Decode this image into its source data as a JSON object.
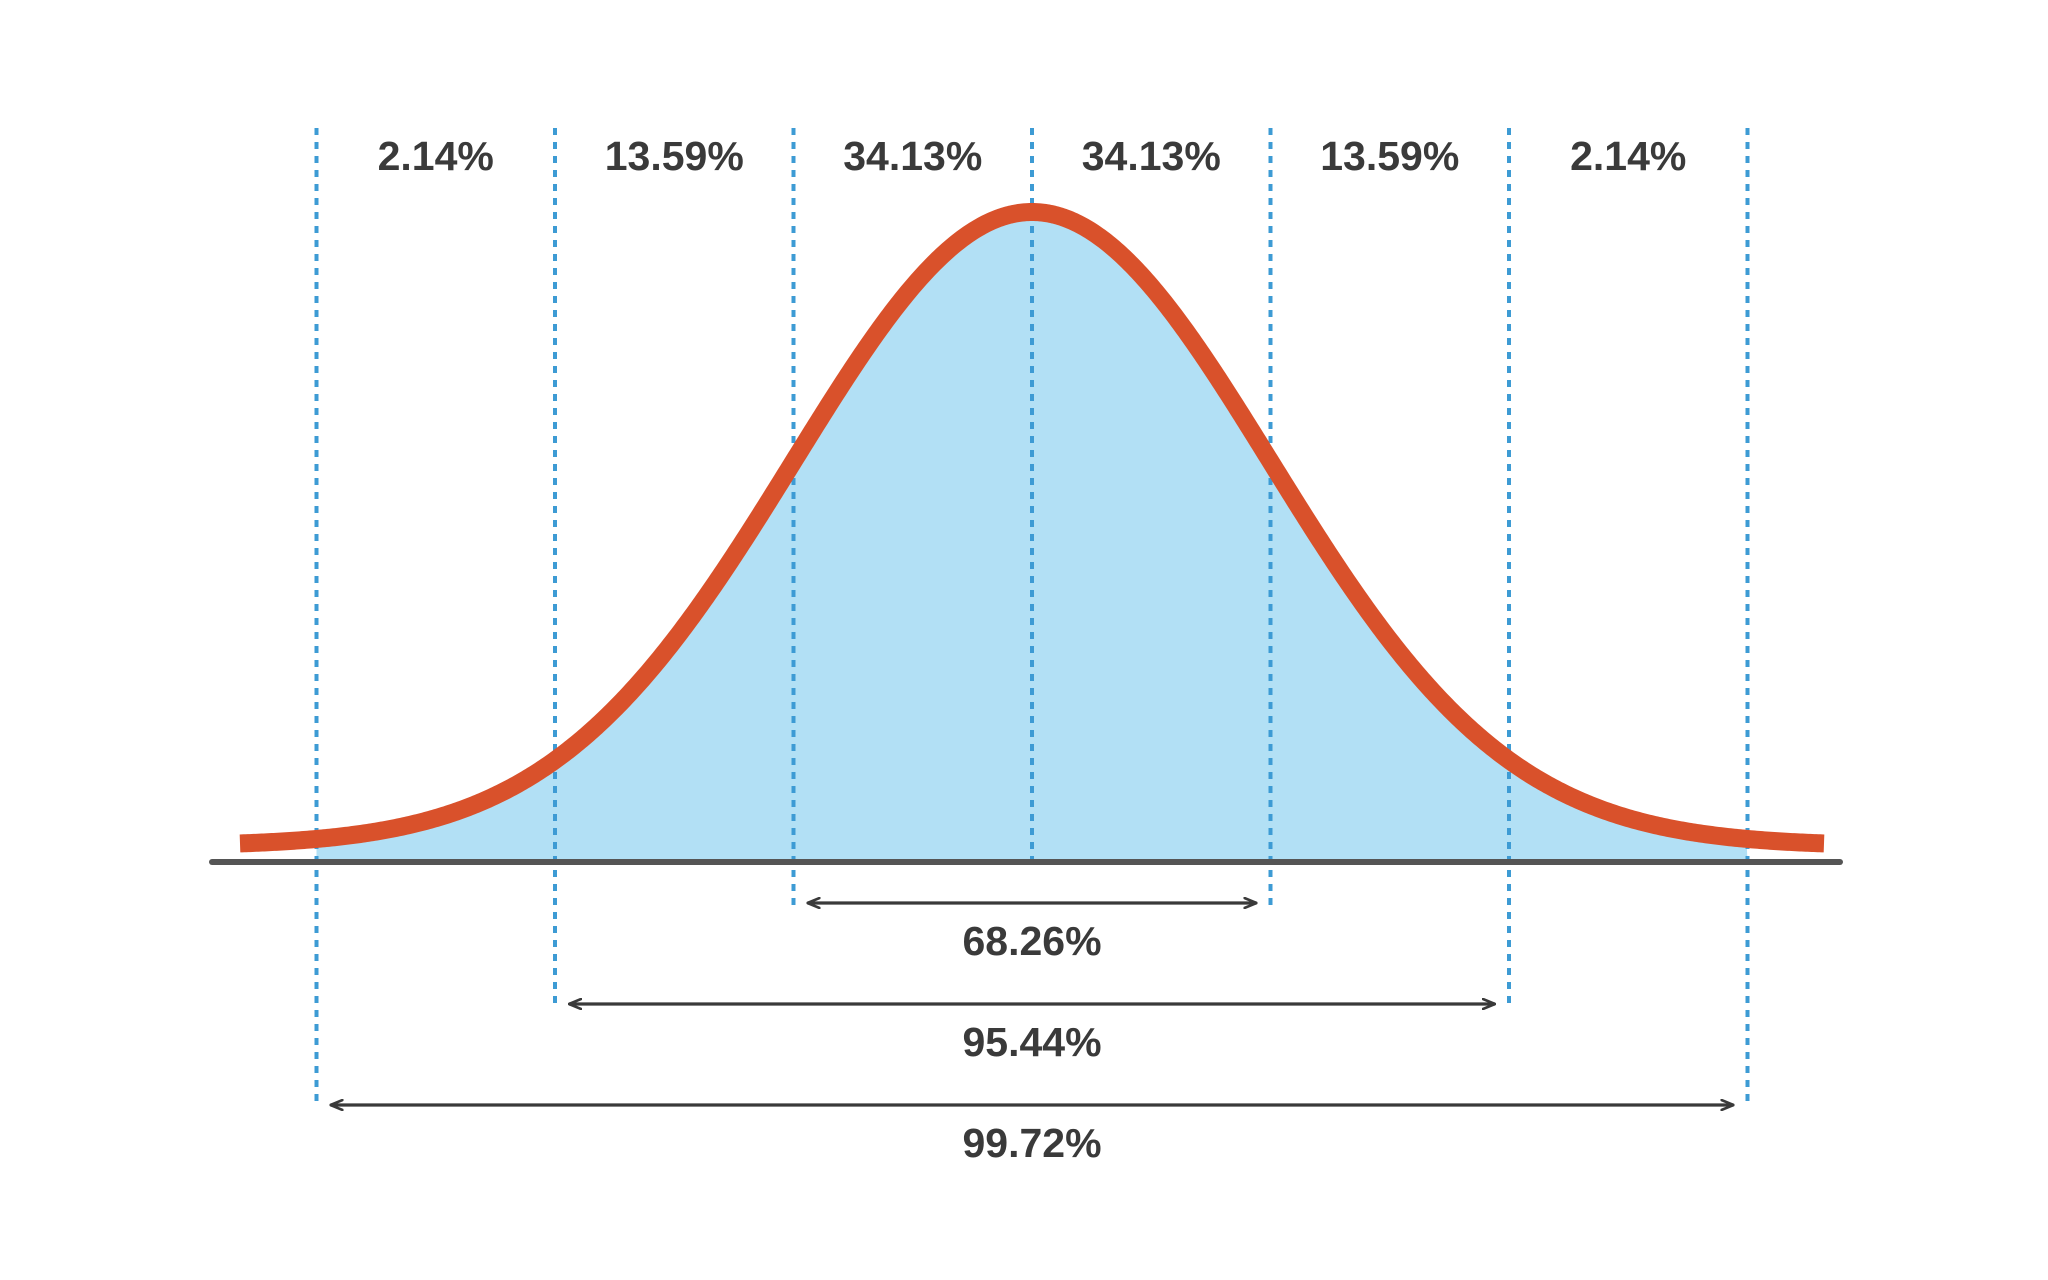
{
  "chart_data": {
    "type": "area",
    "title": "",
    "xlabel": "",
    "ylabel": "",
    "distribution": "normal",
    "mean": 0,
    "std": 1,
    "xlim": [
      -3.3,
      3.3
    ],
    "boundaries": [
      -3,
      -2,
      -1,
      0,
      1,
      2,
      3
    ],
    "segments": [
      {
        "from": -3,
        "to": -2,
        "label": "2.14%"
      },
      {
        "from": -2,
        "to": -1,
        "label": "13.59%"
      },
      {
        "from": -1,
        "to": 0,
        "label": "34.13%"
      },
      {
        "from": 0,
        "to": 1,
        "label": "34.13%"
      },
      {
        "from": 1,
        "to": 2,
        "label": "13.59%"
      },
      {
        "from": 2,
        "to": 3,
        "label": "2.14%"
      }
    ],
    "ranges": [
      {
        "from": -1,
        "to": 1,
        "label": "68.26%"
      },
      {
        "from": -2,
        "to": 2,
        "label": "95.44%"
      },
      {
        "from": -3,
        "to": 3,
        "label": "99.72%"
      }
    ],
    "shaded_region": [
      -3,
      3
    ],
    "grid": false,
    "colors": {
      "curve": "#d9512b",
      "fill": "#b2e0f5",
      "divider": "#3d9bd4",
      "baseline": "#555555",
      "arrow": "#3a3a3a",
      "text": "#3a3a3a"
    }
  }
}
